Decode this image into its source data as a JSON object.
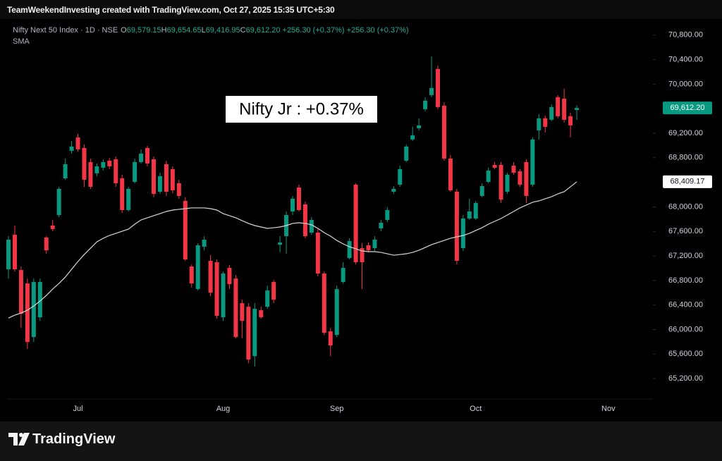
{
  "header": {
    "credit": "TeamWeekendInvesting created with TradingView.com, Oct 27, 2025 15:35 UTC+5:30"
  },
  "legend": {
    "symbol": "Nifty Next 50 Index · 1D · NSE",
    "fields": [
      {
        "key": "O",
        "value": "69,579.15"
      },
      {
        "key": "H",
        "value": "69,654.65"
      },
      {
        "key": "L",
        "value": "69,416.95"
      },
      {
        "key": "C",
        "value": "69,612.20"
      }
    ],
    "changes": [
      "+256.30 (+0.37%)",
      "+256.30 (+0.37%)"
    ]
  },
  "footer": {
    "brand": "TradingView"
  },
  "chart_data": {
    "type": "candlestick",
    "annotation": "Nifty Jr : +0.37%",
    "up_color": "#089981",
    "down_color": "#f23645",
    "categories": [
      null,
      null,
      null,
      null,
      null,
      null,
      null,
      null,
      null,
      null,
      null,
      "Jul",
      null,
      null,
      null,
      null,
      null,
      null,
      null,
      null,
      null,
      null,
      null,
      null,
      null,
      null,
      null,
      null,
      null,
      null,
      null,
      null,
      null,
      null,
      "Aug",
      null,
      null,
      null,
      null,
      null,
      null,
      null,
      null,
      null,
      null,
      null,
      null,
      null,
      null,
      null,
      null,
      null,
      "Sep",
      null,
      null,
      null,
      null,
      null,
      null,
      null,
      null,
      null,
      null,
      null,
      null,
      null,
      null,
      null,
      null,
      null,
      null,
      null,
      null,
      null,
      "Oct",
      null,
      null,
      null,
      null,
      null,
      null,
      null,
      null,
      null,
      null,
      null,
      null,
      null,
      null,
      null,
      null,
      null,
      null,
      null,
      null,
      "Nov"
    ],
    "open": [
      66982,
      67545,
      66970,
      66752,
      65878,
      66200,
      67500,
      67695,
      67867,
      68465,
      68914,
      69132,
      68960,
      68730,
      68546,
      68638,
      68753,
      68776,
      68465,
      67948,
      68408,
      68730,
      68960,
      68776,
      68247,
      68695,
      68615,
      68385,
      68097,
      67028,
      66660,
      67350,
      67120,
      67097,
      66200,
      67005,
      66832,
      66430,
      66372,
      65567,
      66315,
      66372,
      66775,
      67384,
      67522,
      67925,
      68316,
      68040,
      67580,
      67580,
      66913,
      65970,
      65912,
      66775,
      67166,
      68362,
      67327,
      67373,
      67327,
      67649,
      67787,
      68247,
      68362,
      68753,
      69098,
      69282,
      69592,
      69822,
      70248,
      69650,
      68787,
      68247,
      67327,
      67810,
      67810,
      68178,
      68408,
      68684,
      68684,
      68247,
      68672,
      68580,
      68730,
      68362,
      69247,
      69443,
      69420,
      69788,
      69765,
      69477,
      69579.15,
      null,
      null,
      null,
      null,
      null
    ],
    "high": [
      67522,
      67695,
      67028,
      66832,
      66832,
      66832,
      67522,
      67787,
      68327,
      68787,
      69075,
      69190,
      69017,
      68787,
      68707,
      68776,
      68799,
      68822,
      68523,
      68327,
      68787,
      68937,
      68994,
      68822,
      68557,
      68753,
      68661,
      68442,
      68155,
      67062,
      67407,
      67522,
      67212,
      67143,
      66947,
      67051,
      66890,
      66487,
      66430,
      66430,
      66372,
      66717,
      66809,
      67522,
      67925,
      68178,
      68362,
      68086,
      67833,
      67637,
      66947,
      66027,
      66717,
      67097,
      67488,
      68385,
      67407,
      67419,
      67522,
      67787,
      67994,
      68339,
      68672,
      69017,
      69305,
      69443,
      69788,
      70455,
      70305,
      69707,
      68845,
      68293,
      67867,
      68132,
      68097,
      68385,
      68638,
      68730,
      68730,
      68557,
      68730,
      68615,
      68776,
      69132,
      69512,
      69489,
      69673,
      69822,
      69926,
      69535,
      69654.65,
      null,
      null,
      null,
      null,
      null
    ],
    "low": [
      66832,
      66947,
      66027,
      65682,
      65797,
      66142,
      67235,
      67603,
      67833,
      68442,
      68868,
      68902,
      68327,
      68293,
      68500,
      68592,
      68615,
      68327,
      67902,
      67925,
      68385,
      68707,
      68661,
      68155,
      68212,
      68178,
      68224,
      68132,
      67120,
      66683,
      66637,
      67292,
      66545,
      66177,
      66142,
      66660,
      65855,
      65855,
      65452,
      65395,
      66177,
      66338,
      66430,
      67258,
      67235,
      67867,
      67925,
      67488,
      67545,
      66867,
      65912,
      65567,
      65878,
      66752,
      67143,
      67062,
      66660,
      67258,
      67281,
      67603,
      67752,
      68212,
      68327,
      68730,
      69075,
      69247,
      69558,
      69788,
      69592,
      68753,
      68247,
      67062,
      67281,
      67787,
      67787,
      68155,
      68385,
      68615,
      68063,
      68212,
      68523,
      68327,
      68063,
      68327,
      69098,
      69213,
      69397,
      69443,
      69374,
      69132,
      69416.95,
      null,
      null,
      null,
      null,
      null
    ],
    "close": [
      67465,
      66982,
      66257,
      65797,
      66775,
      66775,
      67292,
      67637,
      68293,
      68695,
      68983,
      68937,
      68442,
      68327,
      68661,
      68730,
      68661,
      68385,
      67948,
      68293,
      68730,
      68868,
      68707,
      68212,
      68500,
      68247,
      68270,
      68178,
      67143,
      66752,
      67373,
      67465,
      66602,
      66223,
      66913,
      66740,
      65878,
      66142,
      65510,
      66338,
      66200,
      66637,
      66487,
      67419,
      67867,
      68132,
      67948,
      67522,
      67787,
      66913,
      65947,
      65740,
      66660,
      67005,
      67442,
      67097,
      67097,
      67292,
      67465,
      67741,
      67948,
      68293,
      68615,
      68983,
      69167,
      69328,
      69730,
      69937,
      69627,
      68787,
      68270,
      67120,
      67810,
      67925,
      68063,
      68339,
      68592,
      68638,
      68120,
      68523,
      68557,
      68362,
      68178,
      69098,
      69443,
      69305,
      69627,
      69477,
      69420,
      69328,
      69612.2,
      null,
      null,
      null,
      null,
      null
    ],
    "last_price_label": "69,612.20",
    "sma": {
      "name": "SMA",
      "color": "#d8d8d8",
      "label": "68,409.17",
      "values": [
        66188,
        66235,
        66269,
        66315,
        66384,
        66465,
        66556,
        66660,
        66752,
        66855,
        66982,
        67109,
        67223,
        67327,
        67430,
        67488,
        67534,
        67568,
        67603,
        67637,
        67718,
        67787,
        67822,
        67856,
        67890,
        67925,
        67948,
        67960,
        67971,
        67983,
        67983,
        67983,
        67971,
        67948,
        67890,
        67856,
        67822,
        67775,
        67730,
        67695,
        67672,
        67649,
        67660,
        67672,
        67695,
        67730,
        67741,
        67730,
        67707,
        67649,
        67580,
        67523,
        67453,
        67396,
        67350,
        67316,
        67281,
        67270,
        67270,
        67258,
        67235,
        67212,
        67223,
        67235,
        67258,
        67292,
        67338,
        67384,
        67419,
        67453,
        67488,
        67511,
        67534,
        67568,
        67615,
        67660,
        67718,
        67764,
        67810,
        67867,
        67925,
        67983,
        68029,
        68075,
        68097,
        68132,
        68166,
        68212,
        68247,
        68328,
        68409.17,
        null,
        null,
        null,
        null,
        null
      ]
    },
    "ylim": [
      64880,
      71050
    ],
    "yticks": [
      {
        "value": 70800,
        "label": "70,800.00"
      },
      {
        "value": 70400,
        "label": "70,400.00"
      },
      {
        "value": 70000,
        "label": "70,000.00"
      },
      {
        "value": 69200,
        "label": "69,200.00"
      },
      {
        "value": 68800,
        "label": "68,800.00"
      },
      {
        "value": 68000,
        "label": "68,000.00"
      },
      {
        "value": 67600,
        "label": "67,600.00"
      },
      {
        "value": 67200,
        "label": "67,200.00"
      },
      {
        "value": 66800,
        "label": "66,800.00"
      },
      {
        "value": 66400,
        "label": "66,400.00"
      },
      {
        "value": 66000,
        "label": "66,000.00"
      },
      {
        "value": 65600,
        "label": "65,600.00"
      },
      {
        "value": 65200,
        "label": "65,200.00"
      }
    ],
    "grid": false
  }
}
